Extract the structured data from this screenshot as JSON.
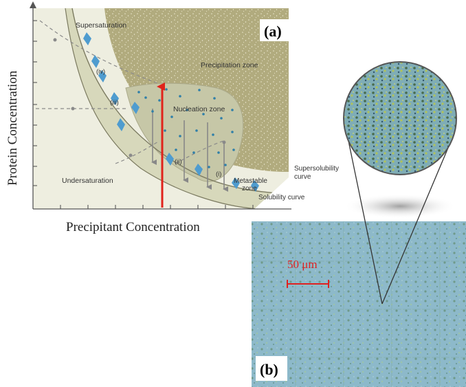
{
  "panel_a": {
    "label": "(a)",
    "x_axis_label": "Precipitant Concentration",
    "y_axis_label": "Protein Concentration",
    "zones": {
      "supersaturation": "Supersaturation",
      "precipitation": "Precipitation zone",
      "nucleation": "Nucleation zone",
      "metastable_line1": "Metastable",
      "metastable_line2": "zone",
      "undersaturation": "Undersaturation"
    },
    "curves": {
      "supersolubility_line1": "Supersolubility",
      "supersolubility_line2": "curve",
      "solubility": "Solubility curve"
    },
    "paths": {
      "i": "(i)",
      "ii": "(ii)",
      "iii": "(iii)",
      "iv": "(iv)"
    }
  },
  "panel_b": {
    "label": "(b)",
    "scale_bar": "50 μm"
  },
  "colors": {
    "precipitation_zone": "#b1ab7e",
    "nucleation_zone": "#c6c7a7",
    "metastable_band": "#d7d8bb",
    "undersaturation": "#eeeee0",
    "crystal": "#4f9ccf",
    "nucleus_dot": "#2f7fa8",
    "red_arrow": "#e0231b",
    "micrograph": "#8ab7c9",
    "scale_bar": "#e02020"
  }
}
